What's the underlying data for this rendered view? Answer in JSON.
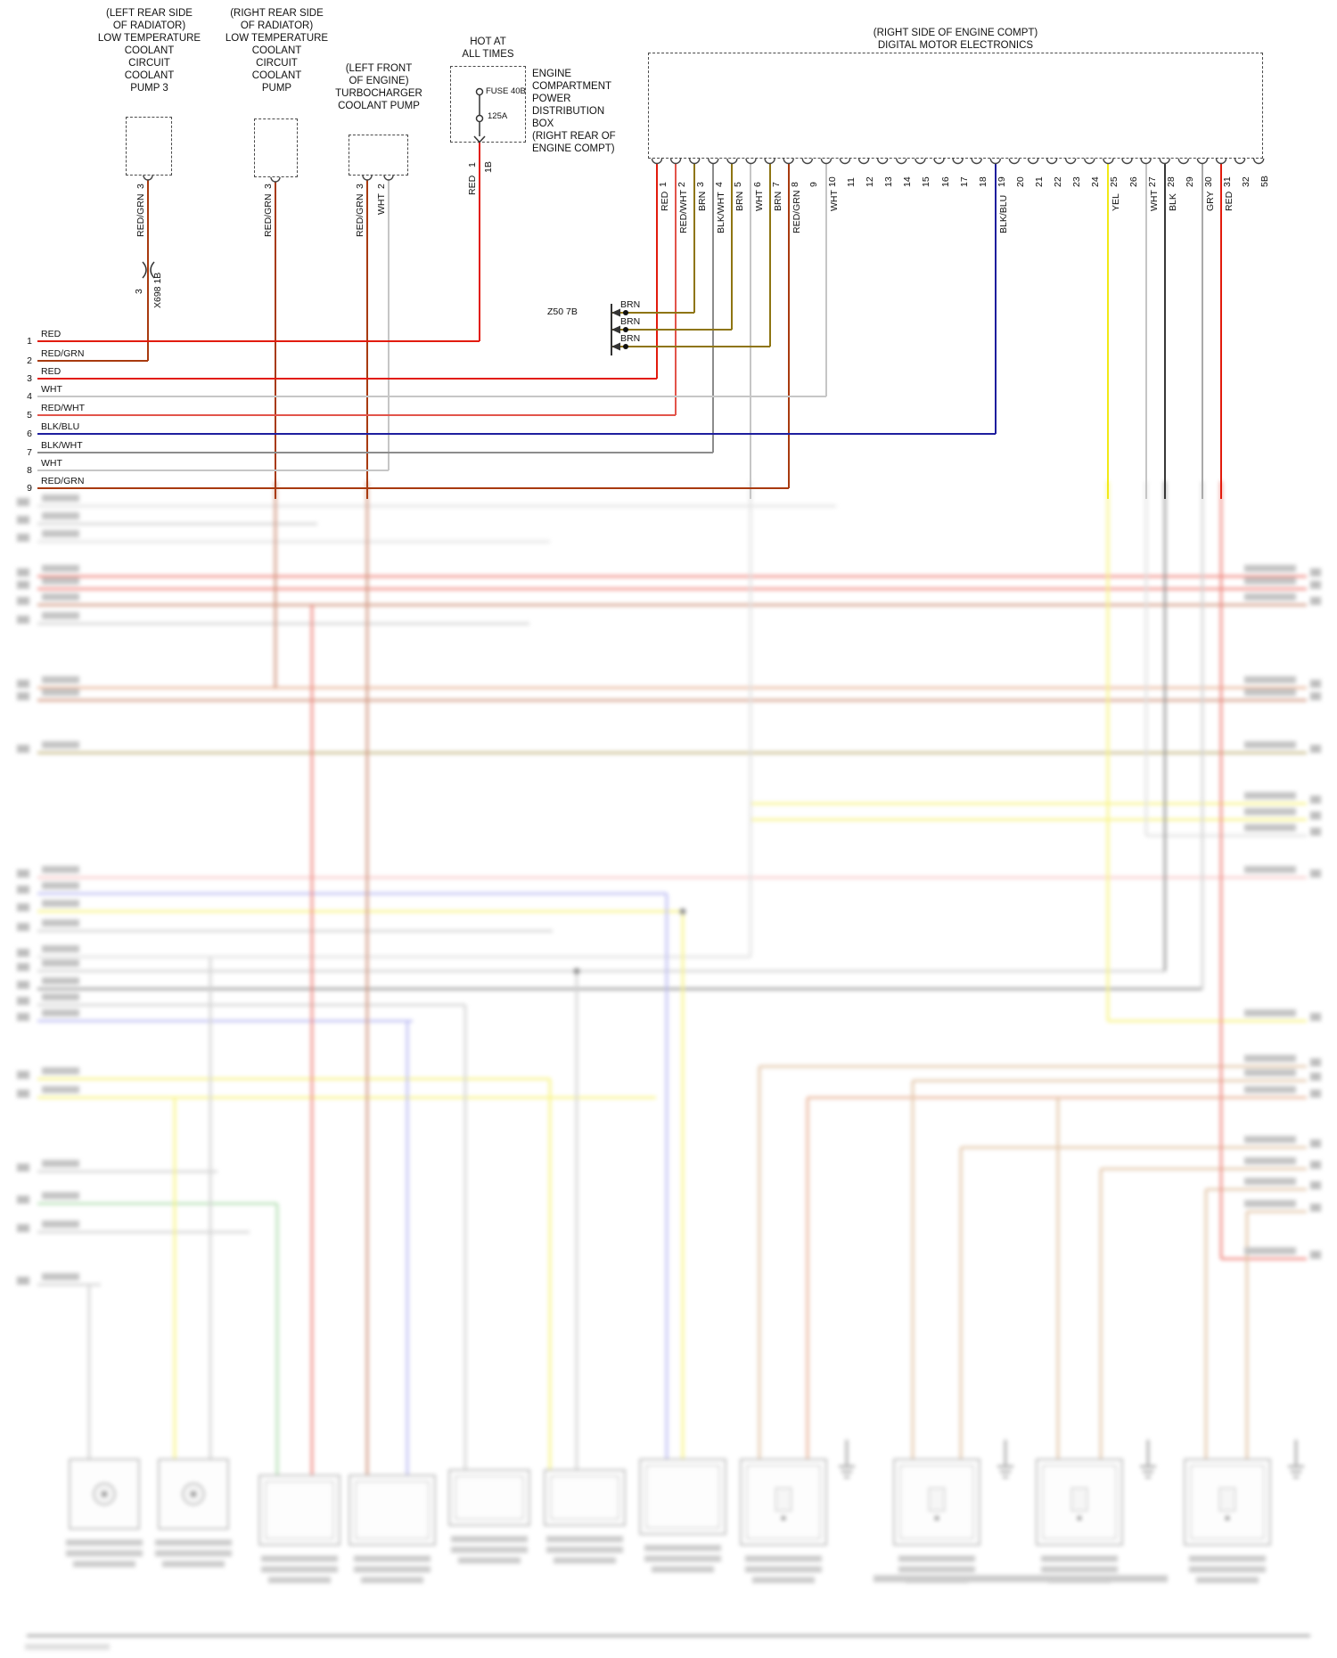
{
  "page": {
    "background": "#ffffff"
  },
  "wire_colors": {
    "RED": "#e21b0c",
    "RED_GRN": "#a83a0f",
    "RED_WHT": "#e2544a",
    "WHT": "#c6c6c6",
    "BRN": "#8e7512",
    "BLK_WHT": "#8c8c8c",
    "BLK_BLU": "#1e1e9e",
    "YEL": "#f2ea16",
    "BLK": "#383838",
    "GRY": "#aaaaaa",
    "BLU": "#8080e8",
    "GRN": "#6cc06c",
    "PNK": "#f29a9a",
    "TAN": "#c89058",
    "ORG": "#d4703c"
  },
  "components": {
    "pump3": {
      "label": "(LEFT REAR SIDE\nOF RADIATOR)\nLOW TEMPERATURE\nCOOLANT\nCIRCUIT\nCOOLANT\nPUMP 3"
    },
    "pump": {
      "label": "(RIGHT REAR SIDE\nOF RADIATOR)\nLOW TEMPERATURE\nCOOLANT\nCIRCUIT\nCOOLANT\nPUMP"
    },
    "turbo_pump": {
      "label": "(LEFT FRONT\nOF ENGINE)\nTURBOCHARGER\nCOOLANT PUMP"
    },
    "power_box": {
      "hot_label": "HOT AT\nALL TIMES",
      "fuse_name": "FUSE 40B",
      "fuse_rating": "125A",
      "label": "ENGINE\nCOMPARTMENT\nPOWER\nDISTRIBUTION\nBOX\n(RIGHT REAR OF\nENGINE COMPT)"
    },
    "dme": {
      "label": "(RIGHT SIDE OF ENGINE COMPT)\nDIGITAL MOTOR ELECTRONICS"
    }
  },
  "inline_connector": {
    "pin": "3",
    "label": "X698 1B"
  },
  "ground": {
    "label": "Z50 7B",
    "wires": [
      "BRN",
      "BRN",
      "BRN"
    ]
  },
  "feed_wires": [
    {
      "id": "pump3",
      "pin": "3",
      "color": "RED/GRN"
    },
    {
      "id": "pump",
      "pin": "3",
      "color": "RED/GRN"
    },
    {
      "id": "turbo-a",
      "pin": "3",
      "color": "RED/GRN"
    },
    {
      "id": "turbo-b",
      "pin": "2",
      "color": "WHT"
    },
    {
      "id": "fuse",
      "pin": "1",
      "connector": "1B",
      "color": "RED"
    }
  ],
  "dme_pins": [
    "1",
    "2",
    "3",
    "4",
    "5",
    "6",
    "7",
    "8",
    "9",
    "10",
    "11",
    "12",
    "13",
    "14",
    "15",
    "16",
    "17",
    "18",
    "19",
    "20",
    "21",
    "22",
    "23",
    "24",
    "25",
    "26",
    "27",
    "28",
    "29",
    "30",
    "31",
    "32",
    "5B"
  ],
  "dme_wires": [
    {
      "pin": "1",
      "color": "RED"
    },
    {
      "pin": "2",
      "color": "RED/WHT"
    },
    {
      "pin": "3",
      "color": "BRN"
    },
    {
      "pin": "4",
      "color": "BLK/WHT"
    },
    {
      "pin": "5",
      "color": "BRN"
    },
    {
      "pin": "6",
      "color": "WHT"
    },
    {
      "pin": "7",
      "color": "BRN"
    },
    {
      "pin": "8",
      "color": "RED/GRN"
    },
    {
      "pin": "10",
      "color": "WHT"
    },
    {
      "pin": "19",
      "color": "BLK/BLU"
    },
    {
      "pin": "25",
      "color": "YEL"
    },
    {
      "pin": "27",
      "color": "WHT"
    },
    {
      "pin": "28",
      "color": "BLK"
    },
    {
      "pin": "30",
      "color": "GRY"
    },
    {
      "pin": "31",
      "color": "RED"
    }
  ],
  "left_rows": [
    {
      "num": "1",
      "color": "RED"
    },
    {
      "num": "2",
      "color": "RED/GRN"
    },
    {
      "num": "3",
      "color": "RED"
    },
    {
      "num": "4",
      "color": "WHT"
    },
    {
      "num": "5",
      "color": "RED/WHT"
    },
    {
      "num": "6",
      "color": "BLK/BLU"
    },
    {
      "num": "7",
      "color": "BLK/WHT"
    },
    {
      "num": "8",
      "color": "WHT"
    },
    {
      "num": "9",
      "color": "RED/GRN"
    }
  ]
}
